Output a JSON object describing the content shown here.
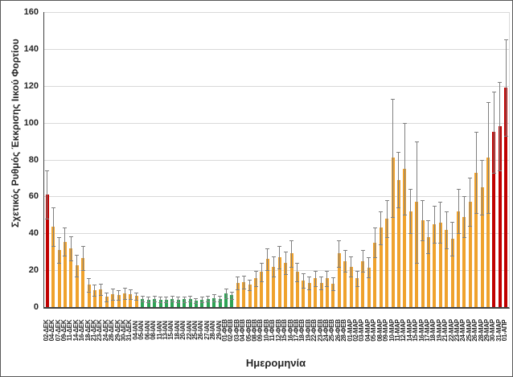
{
  "chart_data": {
    "type": "bar",
    "title": "",
    "xlabel": "Ημερομηνία",
    "ylabel": "Σχετικός Ρυθμός Έκκρισης Ιικού Φορτίου",
    "ylim": [
      0,
      160
    ],
    "yticks": [
      0,
      20,
      40,
      60,
      80,
      100,
      120,
      140,
      160
    ],
    "grid": "horizontal",
    "legend": "none",
    "error_bars": "plus-minus",
    "categories": [
      "02-ΔΕΚ",
      "04-ΔΕΚ",
      "07-ΔΕΚ",
      "09-ΔΕΚ",
      "11-ΔΕΚ",
      "14-ΔΕΚ",
      "16-ΔΕΚ",
      "18-ΔΕΚ",
      "21-ΔΕΚ",
      "23-ΔΕΚ",
      "24-ΔΕΚ",
      "28-ΔΕΚ",
      "29-ΔΕΚ",
      "30-ΔΕΚ",
      "31-ΔΕΚ",
      "04-ΙΑΝ",
      "05-ΙΑΝ",
      "06-ΙΑΝ",
      "08-ΙΑΝ",
      "11-ΙΑΝ",
      "13-ΙΑΝ",
      "15-ΙΑΝ",
      "18-ΙΑΝ",
      "20-ΙΑΝ",
      "22-ΙΑΝ",
      "25-ΙΑΝ",
      "26-ΙΑΝ",
      "27-ΙΑΝ",
      "28-ΙΑΝ",
      "29-ΙΑΝ",
      "01-ΦΕΒ",
      "02-ΦΕΒ",
      "03-ΦΕΒ",
      "04-ΦΕΒ",
      "05-ΦΕΒ",
      "08-ΦΕΒ",
      "09-ΦΕΒ",
      "10-ΦΕΒ",
      "11-ΦΕΒ",
      "12-ΦΕΒ",
      "15-ΦΕΒ",
      "16-ΦΕΒ",
      "17-ΦΕΒ",
      "18-ΦΕΒ",
      "19-ΦΕΒ",
      "22-ΦΕΒ",
      "23-ΦΕΒ",
      "24-ΦΕΒ",
      "25-ΦΕΒ",
      "26-ΦΕΒ",
      "28-ΦΕΒ",
      "01-ΜΑΡ",
      "02-ΜΑΡ",
      "03-ΜΑΡ",
      "04-ΜΑΡ",
      "05-ΜΑΡ",
      "08-ΜΑΡ",
      "09-ΜΑΡ",
      "10-ΜΑΡ",
      "11-ΜΑΡ",
      "12-ΜΑΡ",
      "14-ΜΑΡ",
      "15-ΜΑΡ",
      "16-ΜΑΡ",
      "17-ΜΑΡ",
      "18-ΜΑΡ",
      "19-ΜΑΡ",
      "21-ΜΑΡ",
      "22-ΜΑΡ",
      "23-ΜΑΡ",
      "24-ΜΑΡ",
      "25-ΜΑΡ",
      "26-ΜΑΡ",
      "28-ΜΑΡ",
      "29-ΜΑΡ",
      "30-ΜΑΡ",
      "31-ΜΑΡ",
      "01-ΑΠΡ"
    ],
    "values": [
      61,
      43.5,
      31,
      35.5,
      32,
      22.5,
      26.5,
      12,
      9,
      9.5,
      5.5,
      7,
      6.5,
      7.5,
      7,
      6,
      4.5,
      4,
      4.5,
      4,
      4,
      4.5,
      4,
      4.2,
      4.5,
      3.5,
      4,
      4.5,
      5,
      4.5,
      7.5,
      6.5,
      13,
      13.5,
      12,
      15.5,
      19,
      26,
      22,
      27,
      24,
      29,
      19,
      14.5,
      13,
      15.5,
      13,
      15.5,
      12.5,
      29,
      25,
      22,
      15.5,
      25,
      21.5,
      35,
      43,
      48,
      81,
      69,
      75,
      52,
      57,
      47,
      38,
      45,
      46,
      42,
      37,
      52,
      49,
      57,
      73,
      65,
      81,
      95,
      98,
      119
    ],
    "errors": [
      13,
      10.5,
      7,
      7.5,
      6.5,
      6,
      6.5,
      3.5,
      3,
      3,
      2.5,
      3,
      2.5,
      3,
      2.5,
      2,
      1.5,
      1.5,
      1.5,
      1.5,
      1.5,
      1.5,
      1.5,
      1.5,
      1.5,
      1.2,
      1.5,
      1.5,
      2,
      1.5,
      2.5,
      2,
      3.5,
      3.5,
      3,
      4,
      5,
      6,
      5.5,
      6,
      6,
      7,
      5,
      4,
      3.5,
      4,
      3.5,
      4,
      3.5,
      7,
      6,
      5.5,
      4,
      6,
      5.5,
      8,
      9,
      10,
      32,
      15,
      25,
      12,
      33,
      11,
      9,
      10,
      11,
      10,
      9,
      12,
      11,
      13,
      22,
      15,
      30,
      22,
      24,
      26
    ],
    "bar_colors": [
      "red",
      "orange",
      "orange",
      "orange",
      "orange",
      "orange",
      "orange",
      "orange",
      "orange",
      "orange",
      "orange",
      "orange",
      "orange",
      "orange",
      "orange",
      "orange",
      "green",
      "green",
      "green",
      "green",
      "green",
      "green",
      "green",
      "green",
      "green",
      "green",
      "green",
      "green",
      "green",
      "green",
      "green",
      "green",
      "orange",
      "orange",
      "orange",
      "orange",
      "orange",
      "orange",
      "orange",
      "orange",
      "orange",
      "orange",
      "orange",
      "orange",
      "orange",
      "orange",
      "orange",
      "orange",
      "orange",
      "orange",
      "orange",
      "orange",
      "orange",
      "orange",
      "orange",
      "orange",
      "orange",
      "orange",
      "orange",
      "orange",
      "orange",
      "orange",
      "orange",
      "orange",
      "orange",
      "orange",
      "orange",
      "orange",
      "orange",
      "orange",
      "orange",
      "orange",
      "orange",
      "orange",
      "orange",
      "red",
      "red",
      "red"
    ],
    "palette": {
      "red": "#c00000",
      "orange": "#efa22d",
      "green": "#2ea455",
      "error_bar": "#808080",
      "grid": "#d9d9d9",
      "axis": "#404040",
      "text": "#262626"
    }
  }
}
